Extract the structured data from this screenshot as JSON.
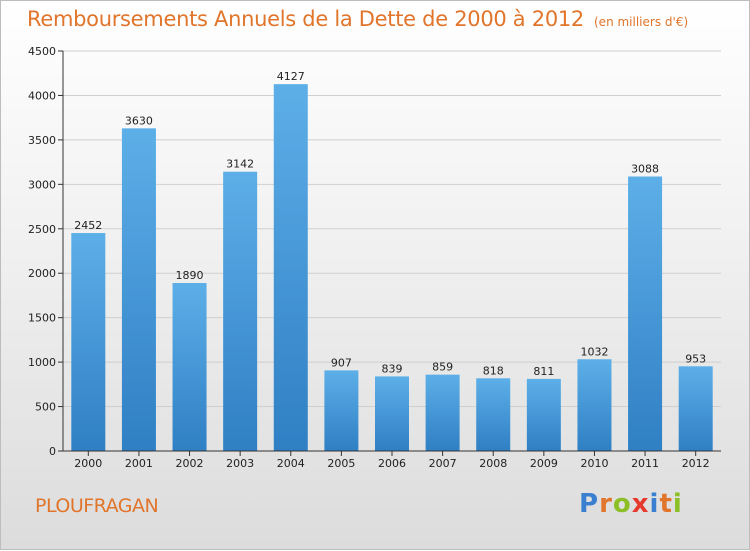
{
  "header": {
    "title": "Remboursements Annuels de la Dette de 2000 à 2012",
    "subtitle": "(en milliers d'€)"
  },
  "footer": {
    "commune": "PLOUFRAGAN",
    "logo_letters": [
      "P",
      "r",
      "o",
      "x",
      "i",
      "t",
      "i"
    ],
    "logo_colors": [
      "#3a7fd0",
      "#e0752b",
      "#8cbf26",
      "#e63a2e",
      "#3a7fd0",
      "#e0752b",
      "#8cbf26"
    ]
  },
  "colors": {
    "bar_top": "#5dafe8",
    "bar_bottom": "#2f7fc4",
    "axis": "#333333",
    "grid": "#cfcfcf",
    "title": "#e0752b"
  },
  "chart_data": {
    "type": "bar",
    "title": "Remboursements Annuels de la Dette de 2000 à 2012",
    "subtitle": "(en milliers d'€)",
    "categories": [
      "2000",
      "2001",
      "2002",
      "2003",
      "2004",
      "2005",
      "2006",
      "2007",
      "2008",
      "2009",
      "2010",
      "2011",
      "2012"
    ],
    "values": [
      2452,
      3630,
      1890,
      3142,
      4127,
      907,
      839,
      859,
      818,
      811,
      1032,
      3088,
      953
    ],
    "data_labels": [
      "2452",
      "3630",
      "1890",
      "3142",
      "4127",
      "907",
      "839",
      "859",
      "818",
      "811",
      "1032",
      "3088",
      "953"
    ],
    "ylim": [
      0,
      4500
    ],
    "yticks": [
      0,
      500,
      1000,
      1500,
      2000,
      2500,
      3000,
      3500,
      4000,
      4500
    ],
    "ytick_labels": [
      "0",
      "500",
      "1000",
      "1500",
      "2000",
      "2500",
      "3000",
      "3500",
      "4000",
      "4500"
    ],
    "xlabel": "",
    "ylabel": "",
    "grid": true
  }
}
